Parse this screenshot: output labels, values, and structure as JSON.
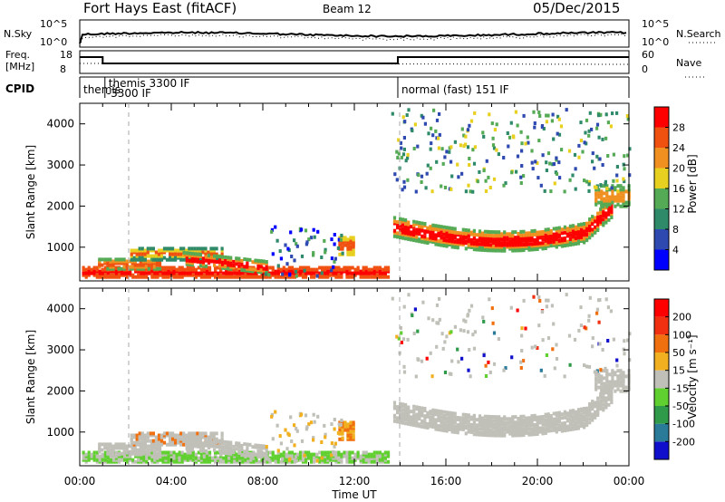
{
  "header": {
    "title": "Fort Hays East (fitACF)",
    "beam": "Beam 12",
    "date": "05/Dec/2015"
  },
  "chart_data": [
    {
      "type": "line",
      "panel": "noise",
      "left_label": "N.Sky",
      "right_label": "N.Search",
      "left_ticks": [
        "10^5",
        "10^0"
      ],
      "right_ticks": [
        "10^5",
        "10^0"
      ]
    },
    {
      "type": "line",
      "panel": "frequency",
      "left_label_top": "Freq.",
      "left_label_bottom": "[MHz]",
      "right_label": "Nave",
      "left_ticks": [
        "18",
        "8"
      ],
      "right_ticks": [
        "60",
        "0"
      ],
      "frequency_segments": [
        {
          "start_hour": 0.0,
          "end_hour": 1.0,
          "level": "high"
        },
        {
          "start_hour": 1.0,
          "end_hour": 13.9,
          "level": "mid"
        },
        {
          "start_hour": 13.9,
          "end_hour": 24.0,
          "level": "high"
        }
      ]
    },
    {
      "type": "table",
      "panel": "cpid",
      "label": "CPID",
      "segments": [
        {
          "text": "themis",
          "start_hour": 0.0,
          "end_hour": 1.1
        },
        {
          "text": "themis 3300 IF",
          "text2": "-3300 IF",
          "start_hour": 1.1,
          "end_hour": 13.9
        },
        {
          "text": "normal (fast) 151 IF",
          "start_hour": 13.9,
          "end_hour": 24.0
        }
      ]
    },
    {
      "type": "heatmap",
      "panel": "power",
      "ylabel": "Slant Range [km]",
      "y_ticks": [
        "1000",
        "2000",
        "3000",
        "4000"
      ],
      "ylim": [
        180,
        4500
      ],
      "colorbar_label": "Power [dB]",
      "colorbar_ticks": [
        "4",
        "8",
        "12",
        "16",
        "20",
        "24",
        "28"
      ],
      "colors": [
        "#0000ff",
        "#2e4ab0",
        "#2e8a68",
        "#55aa55",
        "#e8d020",
        "#f09020",
        "#f05010",
        "#ff0000"
      ]
    },
    {
      "type": "heatmap",
      "panel": "velocity",
      "ylabel": "Slant Range [km]",
      "y_ticks": [
        "1000",
        "2000",
        "3000",
        "4000"
      ],
      "ylim": [
        180,
        4500
      ],
      "xlabel": "Time UT",
      "x_ticks": [
        "00:00",
        "04:00",
        "08:00",
        "12:00",
        "16:00",
        "20:00",
        "00:00"
      ],
      "xlim_hours": [
        0,
        24
      ],
      "colorbar_label": "Velocity [m s⁻¹]",
      "colorbar_ticks": [
        "200",
        "100",
        "50",
        "15",
        "-15",
        "-50",
        "-100",
        "-200"
      ],
      "colors": [
        "#1010cc",
        "#2a7a9a",
        "#2f9a4a",
        "#60d030",
        "#c0c0b8",
        "#f0b020",
        "#f07010",
        "#f03010",
        "#ff0000"
      ]
    }
  ]
}
